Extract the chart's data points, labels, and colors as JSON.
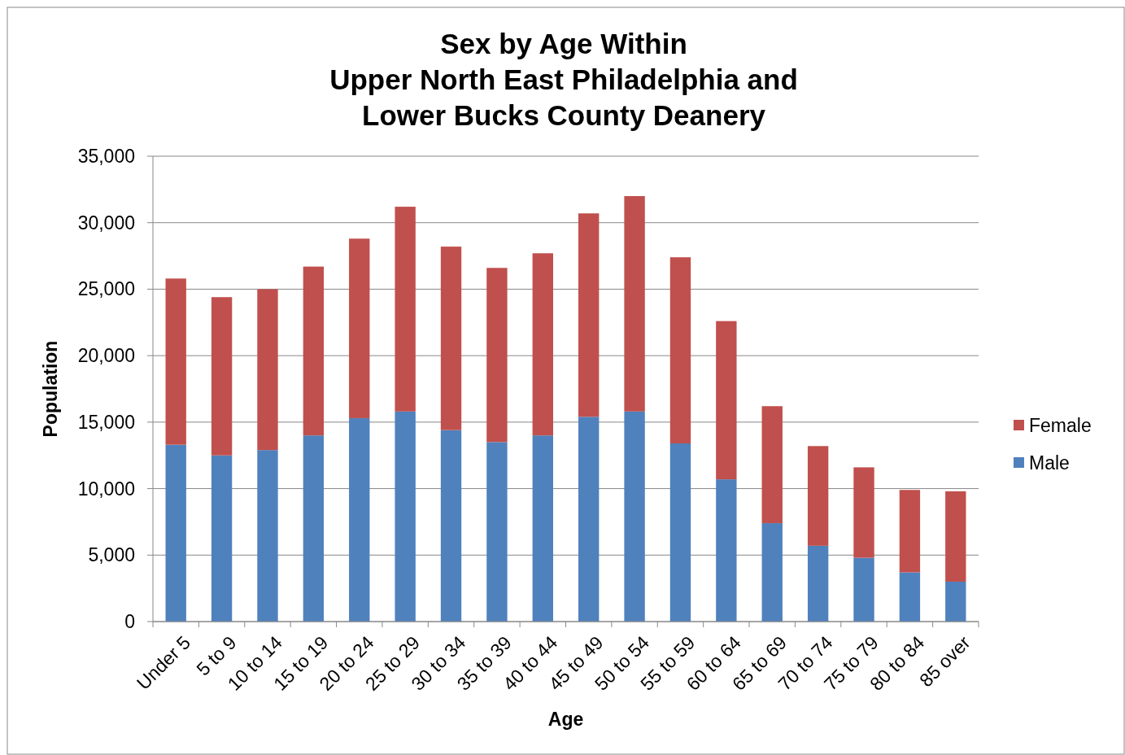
{
  "chart_data": {
    "type": "bar",
    "title": "Sex by Age Within\nUpper North East Philadelphia and\nLower Bucks County Deanery",
    "xlabel": "Age",
    "ylabel": "Population",
    "categories": [
      "Under 5",
      "5 to 9",
      "10 to 14",
      "15 to 19",
      "20 to 24",
      "25 to 29",
      "30 to 34",
      "35 to 39",
      "40 to 44",
      "45 to 49",
      "50 to 54",
      "55 to 59",
      "60 to 64",
      "65 to 69",
      "70 to 74",
      "75 to 79",
      "80 to 84",
      "85 over"
    ],
    "stacked": true,
    "series": [
      {
        "name": "Male",
        "color": "#4f81bd",
        "values": [
          13300,
          12500,
          12900,
          14000,
          15300,
          15800,
          14400,
          13500,
          14000,
          15400,
          15800,
          13400,
          10700,
          7400,
          5700,
          4800,
          3700,
          3000
        ]
      },
      {
        "name": "Female",
        "color": "#c0504d",
        "values": [
          12500,
          11900,
          12100,
          12700,
          13500,
          15400,
          13800,
          13100,
          13700,
          15300,
          16200,
          14000,
          11900,
          8800,
          7500,
          6800,
          6200,
          6800
        ]
      }
    ],
    "ylim": [
      0,
      35000
    ],
    "yticks": [
      {
        "value": 0,
        "label": "0"
      },
      {
        "value": 5000,
        "label": "5,000"
      },
      {
        "value": 10000,
        "label": "10,000"
      },
      {
        "value": 15000,
        "label": "15,000"
      },
      {
        "value": 20000,
        "label": "20,000"
      },
      {
        "value": 25000,
        "label": "25,000"
      },
      {
        "value": 30000,
        "label": "30,000"
      },
      {
        "value": 35000,
        "label": "35,000"
      }
    ],
    "grid": "y",
    "legend": "right"
  }
}
